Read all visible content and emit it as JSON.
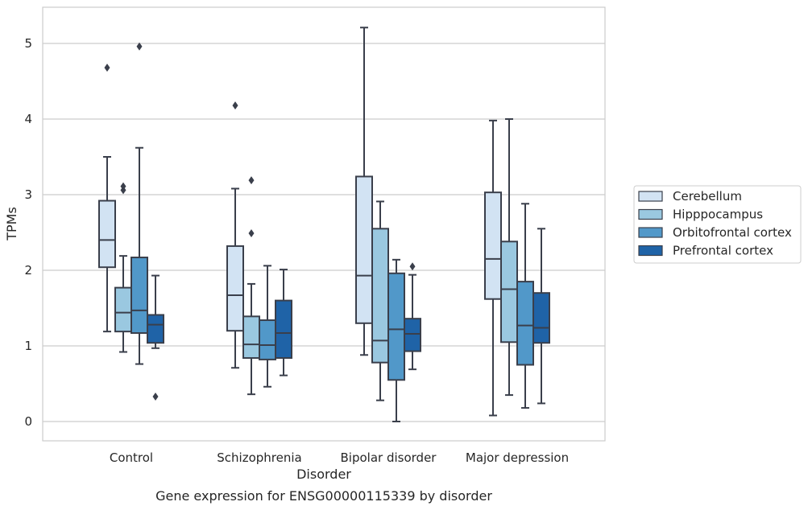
{
  "chart_data": {
    "type": "box",
    "title": "",
    "caption": "Gene expression for ENSG00000115339 by disorder",
    "xlabel": "Disorder",
    "ylabel": "TPMs",
    "ylim": [
      -0.25,
      5.5
    ],
    "yticks": [
      0,
      1,
      2,
      3,
      4,
      5
    ],
    "grid": "horizontal",
    "legend_position": "right",
    "categories": [
      "Control",
      "Schizophrenia",
      "Bipolar disorder",
      "Major depression"
    ],
    "series": [
      {
        "name": "Cerebellum",
        "color": "#d2e3f3",
        "boxes": [
          {
            "whisker_low": 1.19,
            "q1": 2.04,
            "median": 2.4,
            "q3": 2.92,
            "whisker_high": 3.5,
            "outliers": [
              4.68
            ]
          },
          {
            "whisker_low": 0.71,
            "q1": 1.2,
            "median": 1.67,
            "q3": 2.32,
            "whisker_high": 3.08,
            "outliers": [
              4.18
            ]
          },
          {
            "whisker_low": 0.88,
            "q1": 1.3,
            "median": 1.93,
            "q3": 3.24,
            "whisker_high": 5.21,
            "outliers": []
          },
          {
            "whisker_low": 0.08,
            "q1": 1.62,
            "median": 2.15,
            "q3": 3.03,
            "whisker_high": 3.98,
            "outliers": []
          }
        ]
      },
      {
        "name": "Hipppocampus",
        "color": "#9ac8e0",
        "boxes": [
          {
            "whisker_low": 0.92,
            "q1": 1.19,
            "median": 1.44,
            "q3": 1.77,
            "whisker_high": 2.19,
            "outliers": [
              3.06,
              3.11
            ]
          },
          {
            "whisker_low": 0.36,
            "q1": 0.84,
            "median": 1.02,
            "q3": 1.39,
            "whisker_high": 1.82,
            "outliers": [
              2.49,
              3.19
            ]
          },
          {
            "whisker_low": 0.28,
            "q1": 0.78,
            "median": 1.07,
            "q3": 2.55,
            "whisker_high": 2.91,
            "outliers": []
          },
          {
            "whisker_low": 0.35,
            "q1": 1.05,
            "median": 1.75,
            "q3": 2.38,
            "whisker_high": 4.0,
            "outliers": []
          }
        ]
      },
      {
        "name": "Orbitofrontal cortex",
        "color": "#5198c9",
        "boxes": [
          {
            "whisker_low": 0.76,
            "q1": 1.17,
            "median": 1.47,
            "q3": 2.17,
            "whisker_high": 3.62,
            "outliers": [
              4.96
            ]
          },
          {
            "whisker_low": 0.46,
            "q1": 0.82,
            "median": 1.01,
            "q3": 1.34,
            "whisker_high": 2.06,
            "outliers": []
          },
          {
            "whisker_low": 0.0,
            "q1": 0.55,
            "median": 1.22,
            "q3": 1.96,
            "whisker_high": 2.14,
            "outliers": []
          },
          {
            "whisker_low": 0.18,
            "q1": 0.75,
            "median": 1.27,
            "q3": 1.85,
            "whisker_high": 2.88,
            "outliers": []
          }
        ]
      },
      {
        "name": "Prefrontal cortex",
        "color": "#1f63a7",
        "boxes": [
          {
            "whisker_low": 0.97,
            "q1": 1.04,
            "median": 1.28,
            "q3": 1.41,
            "whisker_high": 1.93,
            "outliers": [
              0.33
            ]
          },
          {
            "whisker_low": 0.61,
            "q1": 0.84,
            "median": 1.17,
            "q3": 1.6,
            "whisker_high": 2.01,
            "outliers": []
          },
          {
            "whisker_low": 0.69,
            "q1": 0.93,
            "median": 1.16,
            "q3": 1.36,
            "whisker_high": 1.94,
            "outliers": [
              2.05
            ]
          },
          {
            "whisker_low": 0.24,
            "q1": 1.04,
            "median": 1.24,
            "q3": 1.7,
            "whisker_high": 2.55,
            "outliers": []
          }
        ]
      }
    ]
  }
}
